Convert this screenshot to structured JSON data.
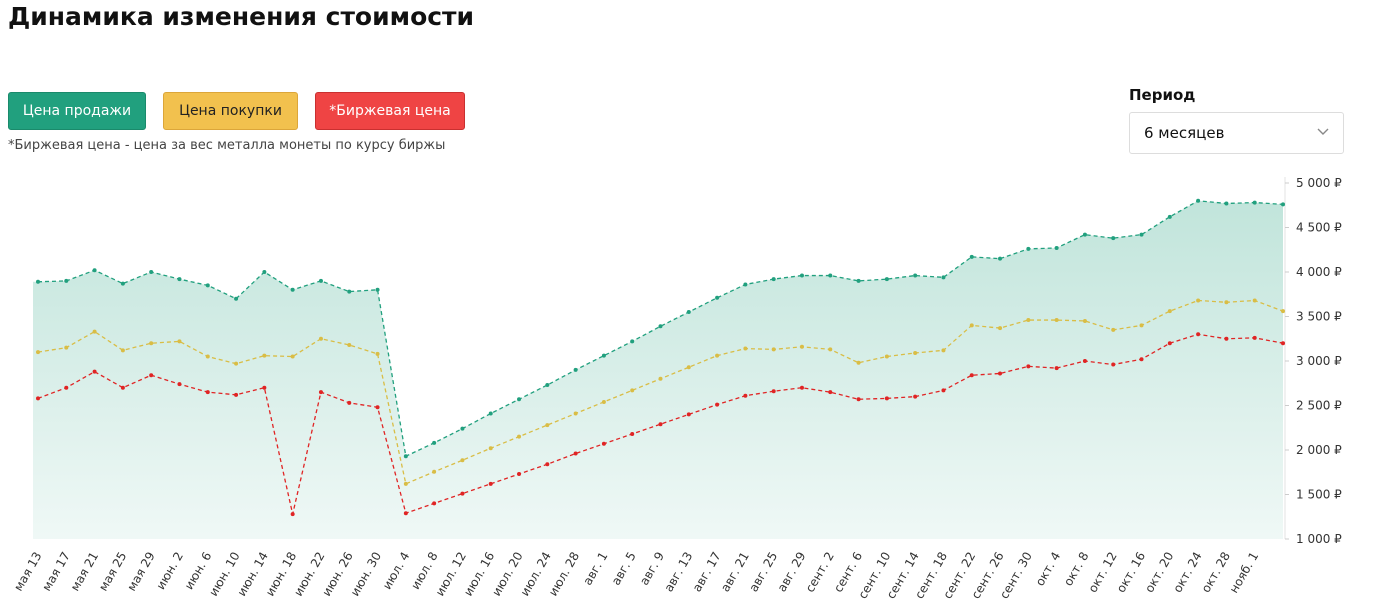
{
  "header": {
    "title": "Динамика изменения стоимости"
  },
  "controls": {
    "note": "*Биржевая цена - цена за вес металла монеты по курсу биржы",
    "period_label": "Период",
    "period_value": "6 месяцев"
  },
  "chart_data": {
    "type": "line",
    "categories": [
      "мая 13",
      "мая 17",
      "мая 21",
      "мая 25",
      "мая 29",
      "июн. 2",
      "июн. 6",
      "июн. 10",
      "июн. 14",
      "июн. 18",
      "июн. 22",
      "июн. 26",
      "июн. 30",
      "июл. 4",
      "июл. 8",
      "июл. 12",
      "июл. 16",
      "июл. 20",
      "июл. 24",
      "июл. 28",
      "авг. 1",
      "авг. 5",
      "авг. 9",
      "авг. 13",
      "авг. 17",
      "авг. 21",
      "авг. 25",
      "авг. 29",
      "сент. 2",
      "сент. 6",
      "сент. 10",
      "сент. 14",
      "сент. 18",
      "сент. 22",
      "сент. 26",
      "сент. 30",
      "окт. 4",
      "окт. 8",
      "окт. 12",
      "окт. 16",
      "окт. 20",
      "окт. 24",
      "окт. 28",
      "нояб. 1",
      null
    ],
    "series": [
      {
        "name": "Цена продажи",
        "color": "#21a07e",
        "values": [
          3890,
          3900,
          4020,
          3870,
          4000,
          3920,
          3850,
          3700,
          4000,
          3800,
          3900,
          3780,
          3800,
          1930,
          2080,
          2240,
          2410,
          2570,
          2730,
          2900,
          3060,
          3220,
          3390,
          3550,
          3710,
          3860,
          3920,
          3960,
          3960,
          3900,
          3920,
          3960,
          3940,
          4170,
          4150,
          4260,
          4270,
          4420,
          4380,
          4420,
          4620,
          4800,
          4770,
          4780,
          4760
        ]
      },
      {
        "name": "Цена покупки",
        "color": "#d9bd45",
        "values": [
          3100,
          3150,
          3330,
          3120,
          3200,
          3220,
          3050,
          2970,
          3060,
          3050,
          3250,
          3180,
          3080,
          1620,
          1755,
          1885,
          2020,
          2150,
          2280,
          2410,
          2540,
          2670,
          2800,
          2930,
          3060,
          3140,
          3130,
          3160,
          3130,
          2980,
          3050,
          3090,
          3120,
          3400,
          3370,
          3460,
          3460,
          3450,
          3350,
          3400,
          3560,
          3680,
          3660,
          3680,
          3560
        ]
      },
      {
        "name": "*Биржевая цена",
        "color": "#e02424",
        "values": [
          2580,
          2700,
          2880,
          2700,
          2840,
          2740,
          2650,
          2620,
          2700,
          1280,
          2650,
          2530,
          2480,
          1290,
          1400,
          1510,
          1620,
          1730,
          1840,
          1960,
          2070,
          2180,
          2290,
          2400,
          2510,
          2610,
          2660,
          2700,
          2650,
          2570,
          2580,
          2600,
          2670,
          2840,
          2860,
          2940,
          2920,
          3000,
          2960,
          3020,
          3200,
          3300,
          3250,
          3260,
          3200
        ]
      }
    ],
    "ylim": [
      1000,
      5000
    ],
    "yticks": [
      {
        "value": 1000,
        "label": "1 000 ₽"
      },
      {
        "value": 1500,
        "label": "1 500 ₽"
      },
      {
        "value": 2000,
        "label": "2 000 ₽"
      },
      {
        "value": 2500,
        "label": "2 500 ₽"
      },
      {
        "value": 3000,
        "label": "3 000 ₽"
      },
      {
        "value": 3500,
        "label": "3 500 ₽"
      },
      {
        "value": 4000,
        "label": "4 000 ₽"
      },
      {
        "value": 4500,
        "label": "4 500 ₽"
      },
      {
        "value": 5000,
        "label": "5 000 ₽"
      }
    ],
    "area_series": 0,
    "dashed": true
  }
}
